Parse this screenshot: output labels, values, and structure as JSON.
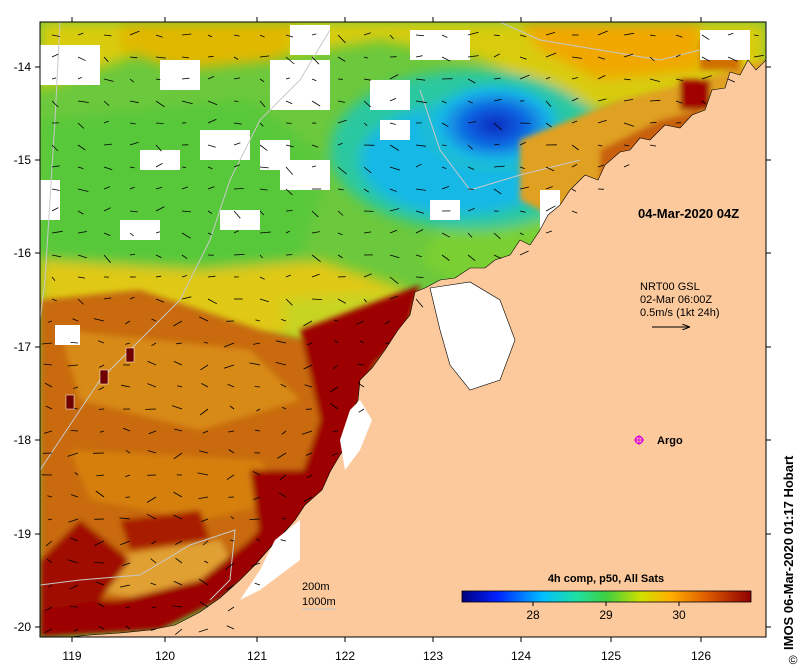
{
  "map": {
    "lon_ticks": [
      "119",
      "120",
      "121",
      "122",
      "123",
      "124",
      "125",
      "126"
    ],
    "lat_ticks": [
      "-14",
      "-15",
      "-16",
      "-17",
      "-18",
      "-19",
      "-20"
    ],
    "timestamp": "04-Mar-2020 04Z",
    "current_source": "NRT00 GSL",
    "current_time": "02-Mar 06:00Z",
    "current_scale": "0.5m/s (1kt 24h)",
    "argo_label": "Argo",
    "depth_200": "200m",
    "depth_1000": "1000m",
    "colorbar_title": "4h comp, p50, All Sats",
    "colorbar_ticks": [
      "28",
      "29",
      "30"
    ],
    "credit": "IMOS 06-Mar-2020 01:17 Hobart",
    "copyright_symbol": "©"
  },
  "colors": {
    "land": "#fcc99c",
    "cloud": "#ffffff",
    "argo": "#e000e0",
    "cold": "#0a2cbf",
    "cool": "#14b8e6",
    "teal": "#2bc8a0",
    "green": "#3ec43a",
    "yellow": "#e8d000",
    "orange": "#d46a00",
    "dark_red": "#9d0600"
  }
}
